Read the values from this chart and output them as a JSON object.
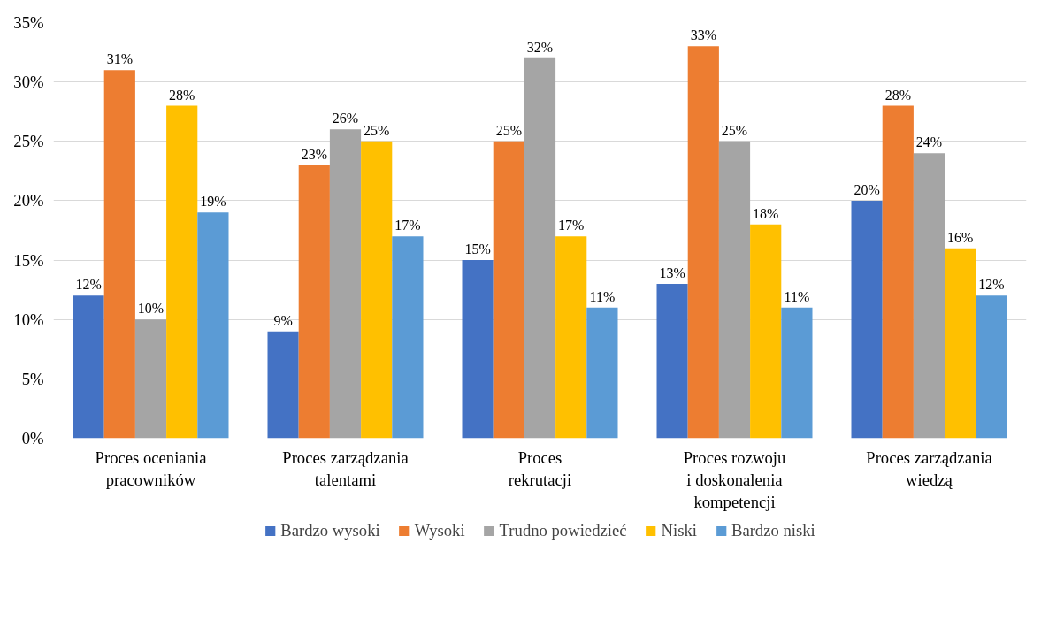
{
  "chart_data": {
    "type": "bar",
    "categories": [
      "Proces oceniania\npracowników",
      "Proces zarządzania\ntalentami",
      "Proces\nrekrutacji",
      "Proces rozwoju\ni doskonalenia\nkompetencji",
      "Proces zarządzania\nwiedzą"
    ],
    "series": [
      {
        "name": "Bardzo wysoki",
        "color": "#4472c4",
        "values": [
          12,
          9,
          15,
          13,
          20
        ],
        "value_labels": [
          "12%",
          "9%",
          "15%",
          "13%",
          "20%"
        ]
      },
      {
        "name": "Wysoki",
        "color": "#ed7d31",
        "values": [
          31,
          23,
          25,
          33,
          28
        ],
        "value_labels": [
          "31%",
          "23%",
          "25%",
          "33%",
          "28%"
        ]
      },
      {
        "name": "Trudno powiedzieć",
        "color": "#a5a5a5",
        "values": [
          10,
          26,
          32,
          25,
          24
        ],
        "value_labels": [
          "10%",
          "26%",
          "32%",
          "25%",
          "24%"
        ]
      },
      {
        "name": "Niski",
        "color": "#ffc000",
        "values": [
          28,
          25,
          17,
          18,
          16
        ],
        "value_labels": [
          "28%",
          "25%",
          "17%",
          "18%",
          "16%"
        ]
      },
      {
        "name": "Bardzo niski",
        "color": "#5b9bd5",
        "values": [
          19,
          17,
          11,
          11,
          12
        ],
        "value_labels": [
          "19%",
          "17%",
          "11%",
          "11%",
          "12%"
        ]
      }
    ],
    "ylim": [
      0,
      35
    ],
    "yticks": [
      {
        "value": 0,
        "label": "0%"
      },
      {
        "value": 5,
        "label": "5%"
      },
      {
        "value": 10,
        "label": "10%"
      },
      {
        "value": 15,
        "label": "15%"
      },
      {
        "value": 20,
        "label": "20%"
      },
      {
        "value": 25,
        "label": "25%"
      },
      {
        "value": 30,
        "label": "30%"
      },
      {
        "value": 35,
        "label": "35%"
      }
    ],
    "grid": "y",
    "legend": "bottom"
  }
}
